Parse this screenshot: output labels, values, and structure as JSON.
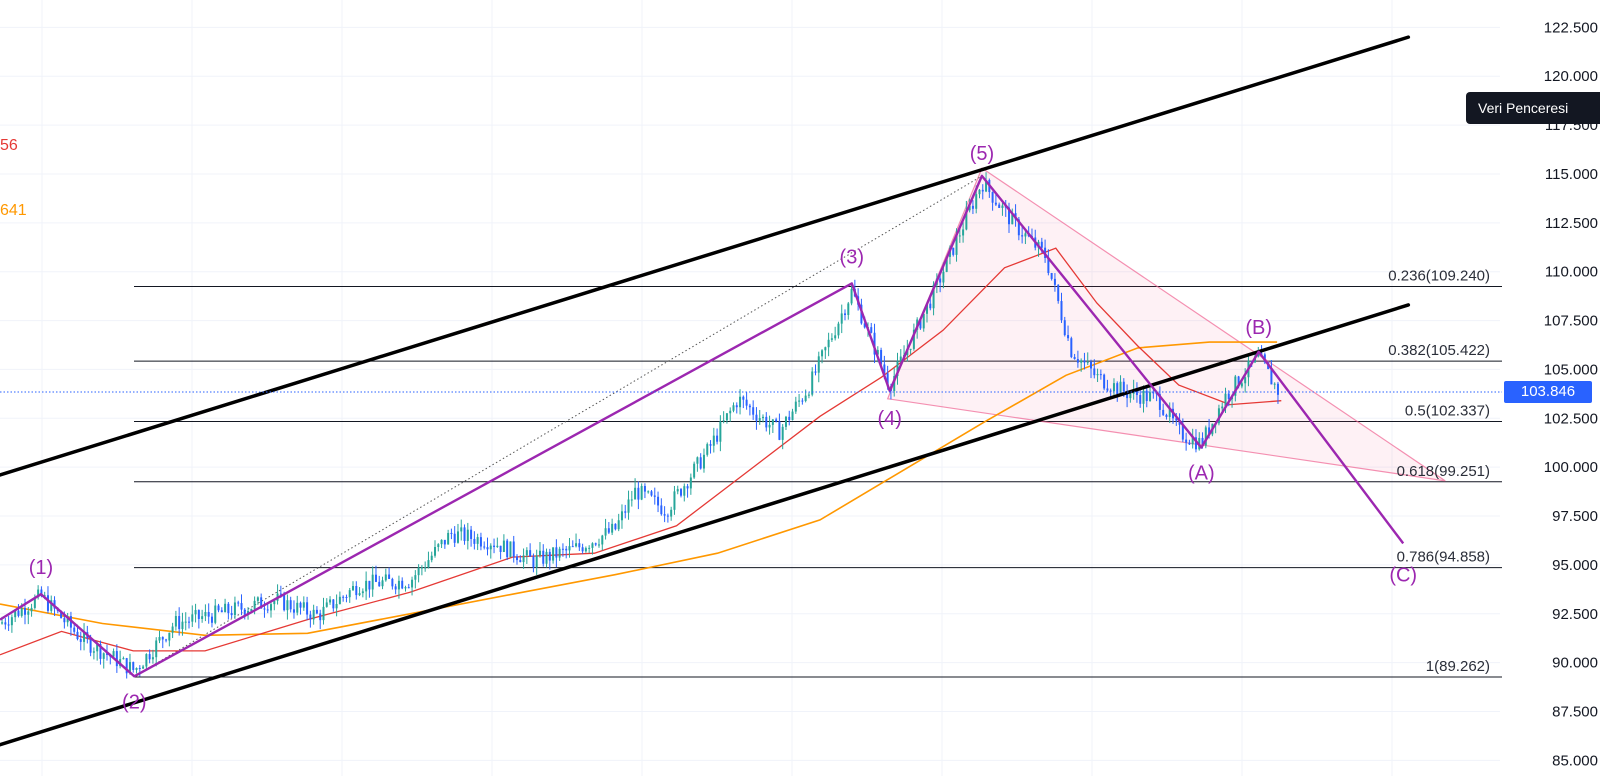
{
  "tooltip": {
    "label": "Veri Penceresi"
  },
  "indicators": [
    {
      "value": "56",
      "color": "#e53935"
    },
    {
      "value": "641",
      "color": "#ff9800"
    }
  ],
  "current_price": {
    "label": "103.846",
    "value": 103.846,
    "color": "#2962ff"
  },
  "colors": {
    "up_candle": "#26a69a",
    "down_candle": "#2962ff",
    "ma_fast": "#e53935",
    "ma_slow": "#ff9800",
    "wave": "#9c27b0",
    "channel": "#000000",
    "triangle": "#f06292",
    "grid": "#f0f3fa"
  },
  "chart_data": {
    "type": "line",
    "y_axis": {
      "ticks": [
        "122.500",
        "120.000",
        "117.500",
        "115.000",
        "112.500",
        "110.000",
        "107.500",
        "105.000",
        "102.500",
        "100.000",
        "97.500",
        "95.000",
        "92.500",
        "90.000",
        "87.500",
        "85.000"
      ],
      "tick_values": [
        122.5,
        120,
        117.5,
        115,
        112.5,
        110,
        107.5,
        105,
        102.5,
        100,
        97.5,
        95,
        92.5,
        90,
        87.5,
        85
      ],
      "range": [
        84.2,
        123.9
      ],
      "position": "right"
    },
    "fibonacci_levels": [
      {
        "label": "0.236(109.240)",
        "value": 109.24
      },
      {
        "label": "0.382(105.422)",
        "value": 105.422
      },
      {
        "label": "0.5(102.337)",
        "value": 102.337
      },
      {
        "label": "0.618(99.251)",
        "value": 99.251
      },
      {
        "label": "0.786(94.858)",
        "value": 94.858
      },
      {
        "label": "1(89.262)",
        "value": 89.262
      }
    ],
    "elliott_waves": [
      {
        "label": "(1)",
        "t": 40,
        "price": 93.5
      },
      {
        "label": "(2)",
        "t": 131,
        "price": 89.3
      },
      {
        "label": "(3)",
        "t": 831,
        "price": 109.4
      },
      {
        "label": "(4)",
        "t": 868,
        "price": 103.9
      },
      {
        "label": "(5)",
        "t": 958,
        "price": 114.9
      },
      {
        "label": "(A)",
        "t": 1172,
        "price": 101.0
      },
      {
        "label": "(B)",
        "t": 1228,
        "price": 105.9
      },
      {
        "label": "(C)",
        "t": 1369,
        "price": 96.1
      }
    ],
    "channel": {
      "upper": [
        {
          "t": 0,
          "price": 99.6
        },
        {
          "t": 1374,
          "price": 122.0
        }
      ],
      "lower": [
        {
          "t": 0,
          "price": 85.8
        },
        {
          "t": 1374,
          "price": 108.3
        }
      ]
    },
    "triangle": [
      {
        "t": 958,
        "price": 115.3
      },
      {
        "t": 1410,
        "price": 99.3
      },
      {
        "t": 866,
        "price": 103.5
      }
    ],
    "candles_close": [
      {
        "t": 0,
        "price": 92.0
      },
      {
        "t": 40,
        "price": 93.4
      },
      {
        "t": 80,
        "price": 91.2
      },
      {
        "t": 131,
        "price": 89.6
      },
      {
        "t": 170,
        "price": 92.0
      },
      {
        "t": 220,
        "price": 92.6
      },
      {
        "t": 270,
        "price": 93.2
      },
      {
        "t": 310,
        "price": 92.4
      },
      {
        "t": 350,
        "price": 94.0
      },
      {
        "t": 400,
        "price": 94.2
      },
      {
        "t": 440,
        "price": 96.6
      },
      {
        "t": 480,
        "price": 96.2
      },
      {
        "t": 520,
        "price": 95.2
      },
      {
        "t": 560,
        "price": 95.8
      },
      {
        "t": 600,
        "price": 96.8
      },
      {
        "t": 620,
        "price": 98.8
      },
      {
        "t": 650,
        "price": 97.8
      },
      {
        "t": 690,
        "price": 100.8
      },
      {
        "t": 720,
        "price": 103.5
      },
      {
        "t": 760,
        "price": 101.8
      },
      {
        "t": 790,
        "price": 104.2
      },
      {
        "t": 831,
        "price": 109.0
      },
      {
        "t": 868,
        "price": 104.2
      },
      {
        "t": 910,
        "price": 108.8
      },
      {
        "t": 958,
        "price": 114.6
      },
      {
        "t": 990,
        "price": 112.4
      },
      {
        "t": 1020,
        "price": 110.8
      },
      {
        "t": 1045,
        "price": 106.0
      },
      {
        "t": 1070,
        "price": 104.6
      },
      {
        "t": 1100,
        "price": 103.8
      },
      {
        "t": 1130,
        "price": 103.5
      },
      {
        "t": 1150,
        "price": 101.8
      },
      {
        "t": 1172,
        "price": 101.2
      },
      {
        "t": 1195,
        "price": 103.6
      },
      {
        "t": 1228,
        "price": 105.6
      },
      {
        "t": 1248,
        "price": 103.8
      }
    ],
    "ma_fast": [
      {
        "t": 0,
        "price": 90.4
      },
      {
        "t": 60,
        "price": 91.6
      },
      {
        "t": 130,
        "price": 90.6
      },
      {
        "t": 200,
        "price": 90.6
      },
      {
        "t": 300,
        "price": 92.2
      },
      {
        "t": 400,
        "price": 93.6
      },
      {
        "t": 500,
        "price": 95.4
      },
      {
        "t": 580,
        "price": 95.6
      },
      {
        "t": 660,
        "price": 97.0
      },
      {
        "t": 730,
        "price": 99.8
      },
      {
        "t": 800,
        "price": 102.6
      },
      {
        "t": 860,
        "price": 104.6
      },
      {
        "t": 920,
        "price": 107.0
      },
      {
        "t": 980,
        "price": 110.2
      },
      {
        "t": 1030,
        "price": 111.2
      },
      {
        "t": 1070,
        "price": 108.4
      },
      {
        "t": 1110,
        "price": 106.2
      },
      {
        "t": 1150,
        "price": 104.2
      },
      {
        "t": 1200,
        "price": 103.2
      },
      {
        "t": 1250,
        "price": 103.4
      }
    ],
    "ma_slow": [
      {
        "t": 0,
        "price": 93.0
      },
      {
        "t": 100,
        "price": 92.0
      },
      {
        "t": 200,
        "price": 91.4
      },
      {
        "t": 300,
        "price": 91.5
      },
      {
        "t": 400,
        "price": 92.5
      },
      {
        "t": 500,
        "price": 93.5
      },
      {
        "t": 600,
        "price": 94.5
      },
      {
        "t": 700,
        "price": 95.6
      },
      {
        "t": 800,
        "price": 97.3
      },
      {
        "t": 880,
        "price": 99.8
      },
      {
        "t": 960,
        "price": 102.3
      },
      {
        "t": 1040,
        "price": 104.7
      },
      {
        "t": 1110,
        "price": 106.1
      },
      {
        "t": 1180,
        "price": 106.4
      },
      {
        "t": 1246,
        "price": 106.4
      }
    ]
  }
}
